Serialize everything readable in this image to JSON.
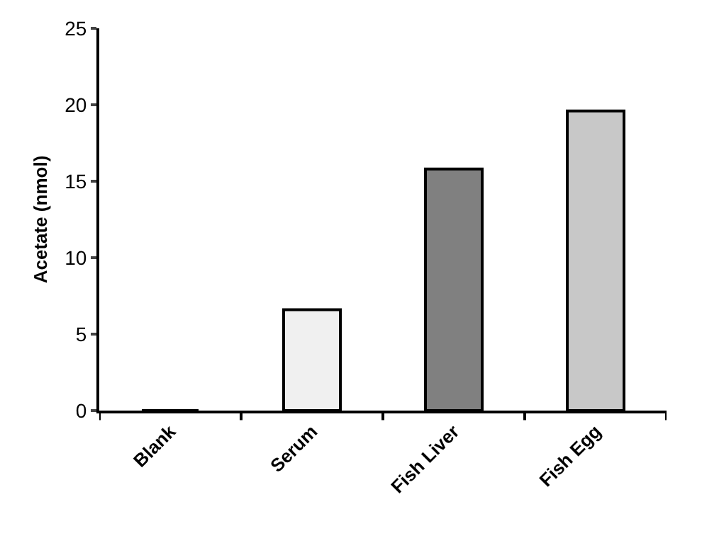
{
  "chart_data": {
    "type": "bar",
    "ylabel": "Acetate (nmol)",
    "categories": [
      "Blank",
      "Serum",
      "Fish Liver",
      "Fish Egg"
    ],
    "values": [
      0,
      6.6,
      15.8,
      19.6
    ],
    "colors": [
      "#ffffff",
      "#f0f0f0",
      "#808080",
      "#c8c8c8"
    ],
    "ylim": [
      0,
      25
    ],
    "yticks": [
      0,
      5,
      10,
      15,
      20,
      25
    ]
  }
}
